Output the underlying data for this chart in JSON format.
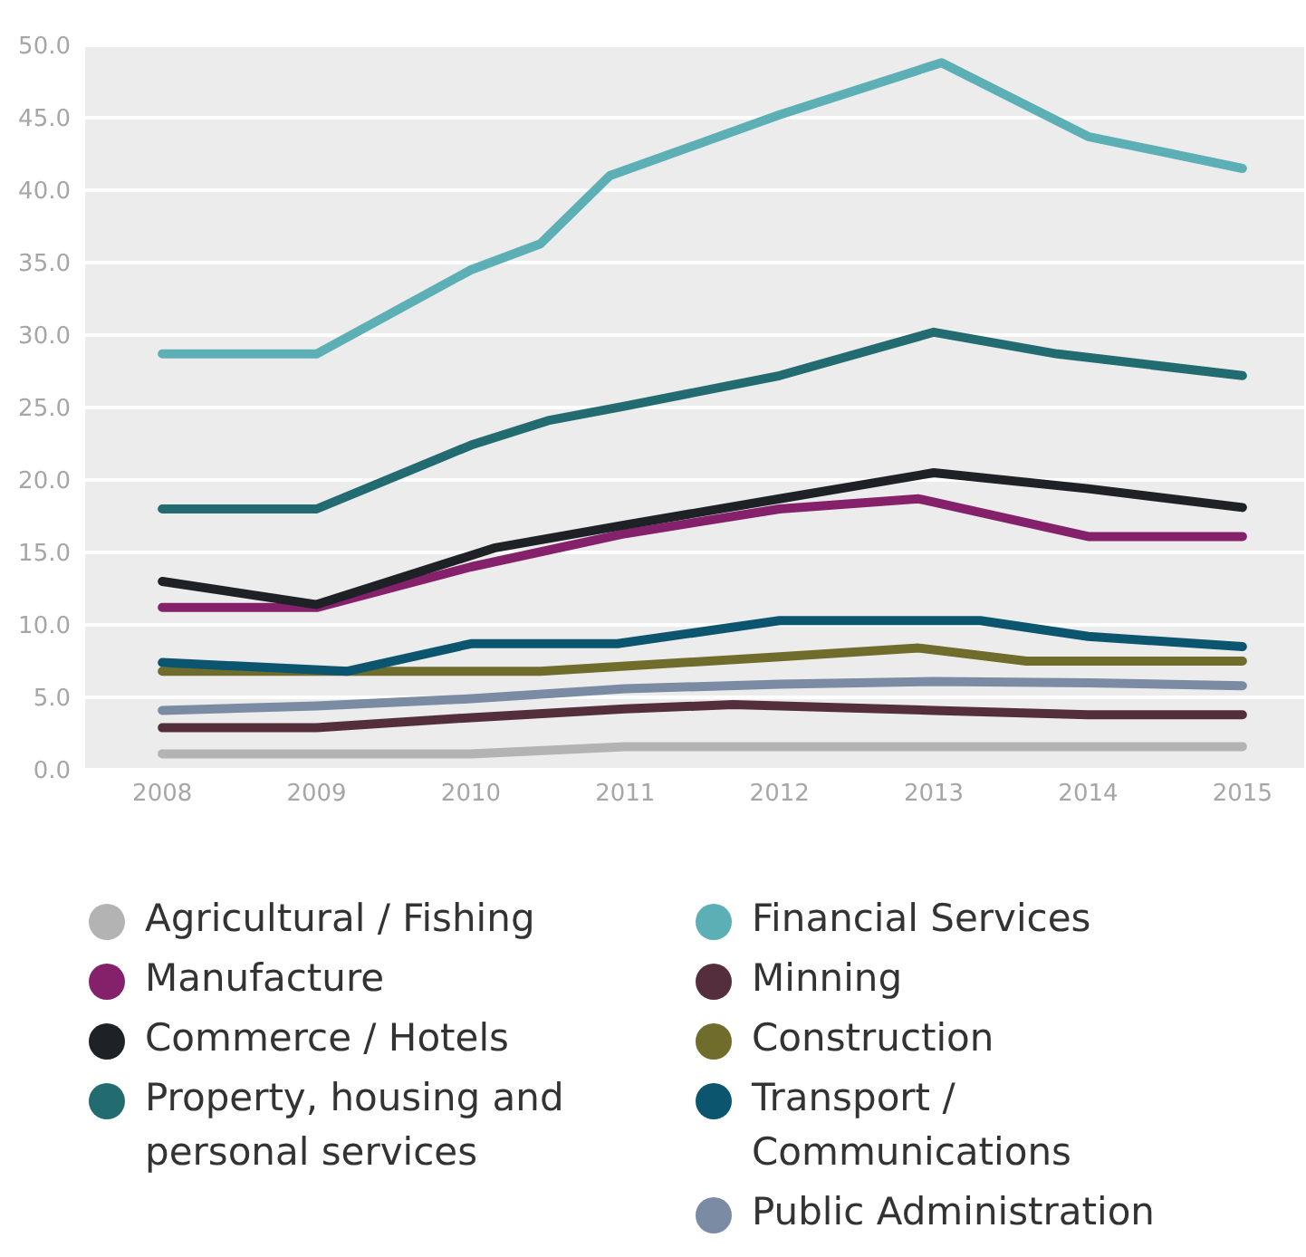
{
  "chart_data": {
    "type": "line",
    "xlim": [
      2007.5,
      2015.4
    ],
    "xticks": [
      2008,
      2009,
      2010,
      2011,
      2012,
      2013,
      2014,
      2015
    ],
    "ylim": [
      0,
      50
    ],
    "yticks": [
      {
        "value": 0,
        "label": "0.0"
      },
      {
        "value": 5,
        "label": "5.0"
      },
      {
        "value": 10,
        "label": "10.0"
      },
      {
        "value": 15,
        "label": "15.0"
      },
      {
        "value": 20,
        "label": "20.0"
      },
      {
        "value": 25,
        "label": "25.0"
      },
      {
        "value": 30,
        "label": "30.0"
      },
      {
        "value": 35,
        "label": "35.0"
      },
      {
        "value": 40,
        "label": "40.0"
      },
      {
        "value": 45,
        "label": "45.0"
      },
      {
        "value": 50,
        "label": "50.0"
      }
    ],
    "grid": "y",
    "legend": "bottom",
    "marker": "none",
    "line_style": "solid",
    "series": [
      {
        "name": "Agricultural / Fishing",
        "color": "#b3b3b3",
        "x": [
          2008,
          2009,
          2010,
          2011,
          2012,
          2013,
          2014,
          2015
        ],
        "values": [
          1.1,
          1.1,
          1.1,
          1.6,
          1.6,
          1.6,
          1.6,
          1.6
        ]
      },
      {
        "name": "Financial Services",
        "color": "#5bafb5",
        "x": [
          2008,
          2009,
          2010,
          2010.45,
          2010.9,
          2012,
          2013.05,
          2014,
          2015
        ],
        "values": [
          28.7,
          28.7,
          34.5,
          36.3,
          41.0,
          45.2,
          48.8,
          43.7,
          41.5
        ]
      },
      {
        "name": "Manufacture",
        "color": "#85216b",
        "x": [
          2008,
          2009,
          2010,
          2011,
          2012,
          2012.9,
          2014,
          2015
        ],
        "values": [
          11.2,
          11.2,
          14.0,
          16.3,
          18.0,
          18.7,
          16.1,
          16.1
        ]
      },
      {
        "name": "Minning",
        "color": "#552e3e",
        "x": [
          2008,
          2009,
          2010,
          2011,
          2011.7,
          2013,
          2014,
          2015
        ],
        "values": [
          2.9,
          2.9,
          3.6,
          4.2,
          4.5,
          4.1,
          3.8,
          3.8
        ]
      },
      {
        "name": "Commerce / Hotels",
        "color": "#1e2126",
        "x": [
          2008,
          2009,
          2010.15,
          2011,
          2012,
          2013,
          2014,
          2015
        ],
        "values": [
          13.0,
          11.4,
          15.3,
          16.9,
          18.7,
          20.5,
          19.4,
          18.1
        ]
      },
      {
        "name": "Construction",
        "color": "#6f6c2c",
        "x": [
          2008,
          2009,
          2010,
          2010.45,
          2012,
          2012.9,
          2013.6,
          2015
        ],
        "values": [
          6.8,
          6.8,
          6.8,
          6.8,
          7.8,
          8.4,
          7.5,
          7.5
        ]
      },
      {
        "name": "Property, housing and personal services",
        "color": "#226b70",
        "x": [
          2008,
          2009,
          2010,
          2010.5,
          2011,
          2012,
          2013,
          2013.8,
          2015
        ],
        "values": [
          18.0,
          18.0,
          22.4,
          24.1,
          25.1,
          27.2,
          30.2,
          28.7,
          27.2
        ]
      },
      {
        "name": "Transport / Communications",
        "color": "#0b556f",
        "x": [
          2008,
          2009.2,
          2010,
          2010.95,
          2012,
          2013.3,
          2014,
          2015
        ],
        "values": [
          7.4,
          6.8,
          8.7,
          8.7,
          10.3,
          10.3,
          9.2,
          8.5
        ]
      },
      {
        "name": "Public Administration",
        "color": "#7a8ba3",
        "x": [
          2008,
          2009,
          2010,
          2011,
          2012,
          2013,
          2014,
          2015
        ],
        "values": [
          4.1,
          4.4,
          4.9,
          5.6,
          5.9,
          6.1,
          6.0,
          5.8
        ]
      }
    ]
  }
}
